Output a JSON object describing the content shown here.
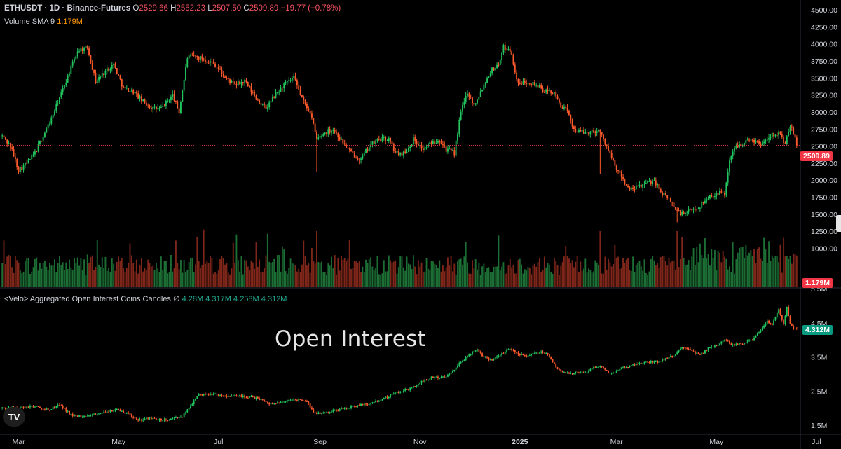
{
  "header": {
    "symbol": "ETHUSDT · 1D · Binance-Futures",
    "o_label": "O",
    "o_value": "2529.66",
    "h_label": "H",
    "h_value": "2552.23",
    "l_label": "L",
    "l_value": "2507.50",
    "c_label": "C",
    "c_value": "2509.89",
    "change": "−19.77 (−0.78%)"
  },
  "volume_legend": {
    "label": "Volume SMA 9",
    "value": "1.179M"
  },
  "oi_legend": {
    "label": "<Velo> Aggregated Open Interest Coins Candles",
    "symbol": "∅",
    "values": [
      "4.28M",
      "4.317M",
      "4.258M",
      "4.312M"
    ]
  },
  "annotation": "Open Interest",
  "price_tag": "2509.89",
  "volume_tag": "1.179M",
  "oi_tag": "4.312M",
  "colors": {
    "up": "#22c55e",
    "down": "#ff5a2b",
    "background": "#000000",
    "axis_text": "#d1d4dc"
  },
  "logo_icon": "tradingview-logo-icon",
  "chart_data": [
    {
      "type": "candlestick",
      "title": "ETHUSDT · 1D · Binance-Futures",
      "ylim": [
        900,
        4600
      ],
      "y_ticks": [
        "4500.00",
        "4250.00",
        "4000.00",
        "3750.00",
        "3500.00",
        "3250.00",
        "3000.00",
        "2750.00",
        "2500.00",
        "2250.00",
        "2000.00",
        "1750.00",
        "1500.00",
        "1250.00",
        "1000.00"
      ],
      "y_tick_values": [
        4500,
        4250,
        4000,
        3750,
        3500,
        3250,
        3000,
        2750,
        2500,
        2250,
        2000,
        1750,
        1500,
        1250,
        1000
      ],
      "x_ticks": [
        "Mar",
        "May",
        "Jul",
        "Sep",
        "Nov",
        "2025",
        "Mar",
        "May",
        "Jul"
      ],
      "x_tick_days": [
        10,
        71,
        132,
        194,
        255,
        316,
        375,
        436,
        497
      ],
      "last_price": 2509.89,
      "path": [
        [
          0,
          2650
        ],
        [
          5,
          2500
        ],
        [
          10,
          2150
        ],
        [
          15,
          2250
        ],
        [
          20,
          2400
        ],
        [
          30,
          2900
        ],
        [
          38,
          3400
        ],
        [
          46,
          3900
        ],
        [
          52,
          3950
        ],
        [
          57,
          3450
        ],
        [
          63,
          3600
        ],
        [
          68,
          3700
        ],
        [
          74,
          3350
        ],
        [
          80,
          3300
        ],
        [
          86,
          3150
        ],
        [
          92,
          3050
        ],
        [
          97,
          3050
        ],
        [
          104,
          3250
        ],
        [
          108,
          3000
        ],
        [
          113,
          3800
        ],
        [
          117,
          3820
        ],
        [
          123,
          3780
        ],
        [
          130,
          3700
        ],
        [
          136,
          3500
        ],
        [
          142,
          3400
        ],
        [
          148,
          3450
        ],
        [
          155,
          3200
        ],
        [
          161,
          3050
        ],
        [
          166,
          3230
        ],
        [
          172,
          3400
        ],
        [
          178,
          3500
        ],
        [
          184,
          3150
        ],
        [
          188,
          3000
        ],
        [
          192,
          2600
        ],
        [
          197,
          2700
        ],
        [
          202,
          2750
        ],
        [
          208,
          2550
        ],
        [
          213,
          2400
        ],
        [
          219,
          2300
        ],
        [
          224,
          2500
        ],
        [
          230,
          2600
        ],
        [
          236,
          2600
        ],
        [
          240,
          2400
        ],
        [
          246,
          2400
        ],
        [
          251,
          2600
        ],
        [
          257,
          2450
        ],
        [
          262,
          2550
        ],
        [
          267,
          2600
        ],
        [
          271,
          2450
        ],
        [
          276,
          2400
        ],
        [
          280,
          3000
        ],
        [
          284,
          3300
        ],
        [
          288,
          3100
        ],
        [
          293,
          3350
        ],
        [
          298,
          3600
        ],
        [
          303,
          3700
        ],
        [
          306,
          3950
        ],
        [
          310,
          3920
        ],
        [
          315,
          3400
        ],
        [
          321,
          3450
        ],
        [
          326,
          3400
        ],
        [
          331,
          3300
        ],
        [
          336,
          3300
        ],
        [
          341,
          3100
        ],
        [
          345,
          3000
        ],
        [
          349,
          2750
        ],
        [
          354,
          2700
        ],
        [
          359,
          2700
        ],
        [
          364,
          2740
        ],
        [
          369,
          2500
        ],
        [
          374,
          2200
        ],
        [
          378,
          2050
        ],
        [
          383,
          1850
        ],
        [
          388,
          1900
        ],
        [
          393,
          1950
        ],
        [
          398,
          2000
        ],
        [
          403,
          1800
        ],
        [
          408,
          1700
        ],
        [
          411,
          1570
        ],
        [
          415,
          1500
        ],
        [
          420,
          1550
        ],
        [
          425,
          1600
        ],
        [
          431,
          1750
        ],
        [
          437,
          1820
        ],
        [
          441,
          1800
        ],
        [
          444,
          2300
        ],
        [
          448,
          2500
        ],
        [
          452,
          2550
        ],
        [
          458,
          2600
        ],
        [
          463,
          2520
        ],
        [
          468,
          2650
        ],
        [
          474,
          2700
        ],
        [
          478,
          2520
        ],
        [
          481,
          2800
        ],
        [
          483,
          2690
        ],
        [
          485,
          2509.89
        ]
      ],
      "spikes": [
        [
          192,
          2120
        ],
        [
          365,
          2090
        ],
        [
          412,
          1380
        ]
      ]
    },
    {
      "type": "bar",
      "title": "Volume SMA 9",
      "last_value": "1.179M"
    },
    {
      "type": "candlestick",
      "title": "<Velo> Aggregated Open Interest Coins Candles",
      "ylim": [
        1.4,
        5.6
      ],
      "y_ticks": [
        "5.5M",
        "4.5M",
        "3.5M",
        "2.5M",
        "1.5M"
      ],
      "y_tick_values": [
        5.5,
        4.5,
        3.5,
        2.5,
        1.5
      ],
      "last_value": 4.312,
      "path": [
        [
          0,
          2.0
        ],
        [
          10,
          2.0
        ],
        [
          20,
          2.05
        ],
        [
          28,
          1.95
        ],
        [
          35,
          2.1
        ],
        [
          42,
          1.8
        ],
        [
          50,
          1.75
        ],
        [
          58,
          1.85
        ],
        [
          70,
          1.95
        ],
        [
          76,
          1.85
        ],
        [
          82,
          1.65
        ],
        [
          90,
          1.7
        ],
        [
          100,
          1.65
        ],
        [
          110,
          1.75
        ],
        [
          120,
          2.4
        ],
        [
          130,
          2.4
        ],
        [
          138,
          2.35
        ],
        [
          145,
          2.35
        ],
        [
          155,
          2.3
        ],
        [
          165,
          2.1
        ],
        [
          172,
          2.2
        ],
        [
          180,
          2.25
        ],
        [
          186,
          2.2
        ],
        [
          190,
          1.85
        ],
        [
          197,
          1.85
        ],
        [
          205,
          1.95
        ],
        [
          215,
          2.05
        ],
        [
          225,
          2.15
        ],
        [
          232,
          2.25
        ],
        [
          240,
          2.45
        ],
        [
          248,
          2.55
        ],
        [
          255,
          2.75
        ],
        [
          262,
          2.9
        ],
        [
          270,
          2.9
        ],
        [
          275,
          3.1
        ],
        [
          280,
          3.35
        ],
        [
          286,
          3.6
        ],
        [
          290,
          3.7
        ],
        [
          294,
          3.5
        ],
        [
          298,
          3.4
        ],
        [
          305,
          3.6
        ],
        [
          310,
          3.75
        ],
        [
          315,
          3.6
        ],
        [
          320,
          3.5
        ],
        [
          326,
          3.65
        ],
        [
          333,
          3.6
        ],
        [
          338,
          3.2
        ],
        [
          344,
          3.0
        ],
        [
          350,
          3.05
        ],
        [
          356,
          3.05
        ],
        [
          362,
          3.2
        ],
        [
          366,
          3.2
        ],
        [
          372,
          3.0
        ],
        [
          378,
          3.2
        ],
        [
          385,
          3.25
        ],
        [
          392,
          3.35
        ],
        [
          400,
          3.35
        ],
        [
          405,
          3.45
        ],
        [
          410,
          3.55
        ],
        [
          415,
          3.8
        ],
        [
          420,
          3.7
        ],
        [
          426,
          3.55
        ],
        [
          431,
          3.75
        ],
        [
          436,
          3.85
        ],
        [
          441,
          4.0
        ],
        [
          446,
          3.85
        ],
        [
          452,
          3.9
        ],
        [
          458,
          4.0
        ],
        [
          463,
          4.3
        ],
        [
          467,
          4.55
        ],
        [
          470,
          4.45
        ],
        [
          474,
          4.9
        ],
        [
          477,
          4.45
        ],
        [
          479,
          4.95
        ],
        [
          481,
          4.5
        ],
        [
          483,
          4.32
        ],
        [
          485,
          4.312
        ]
      ]
    }
  ]
}
